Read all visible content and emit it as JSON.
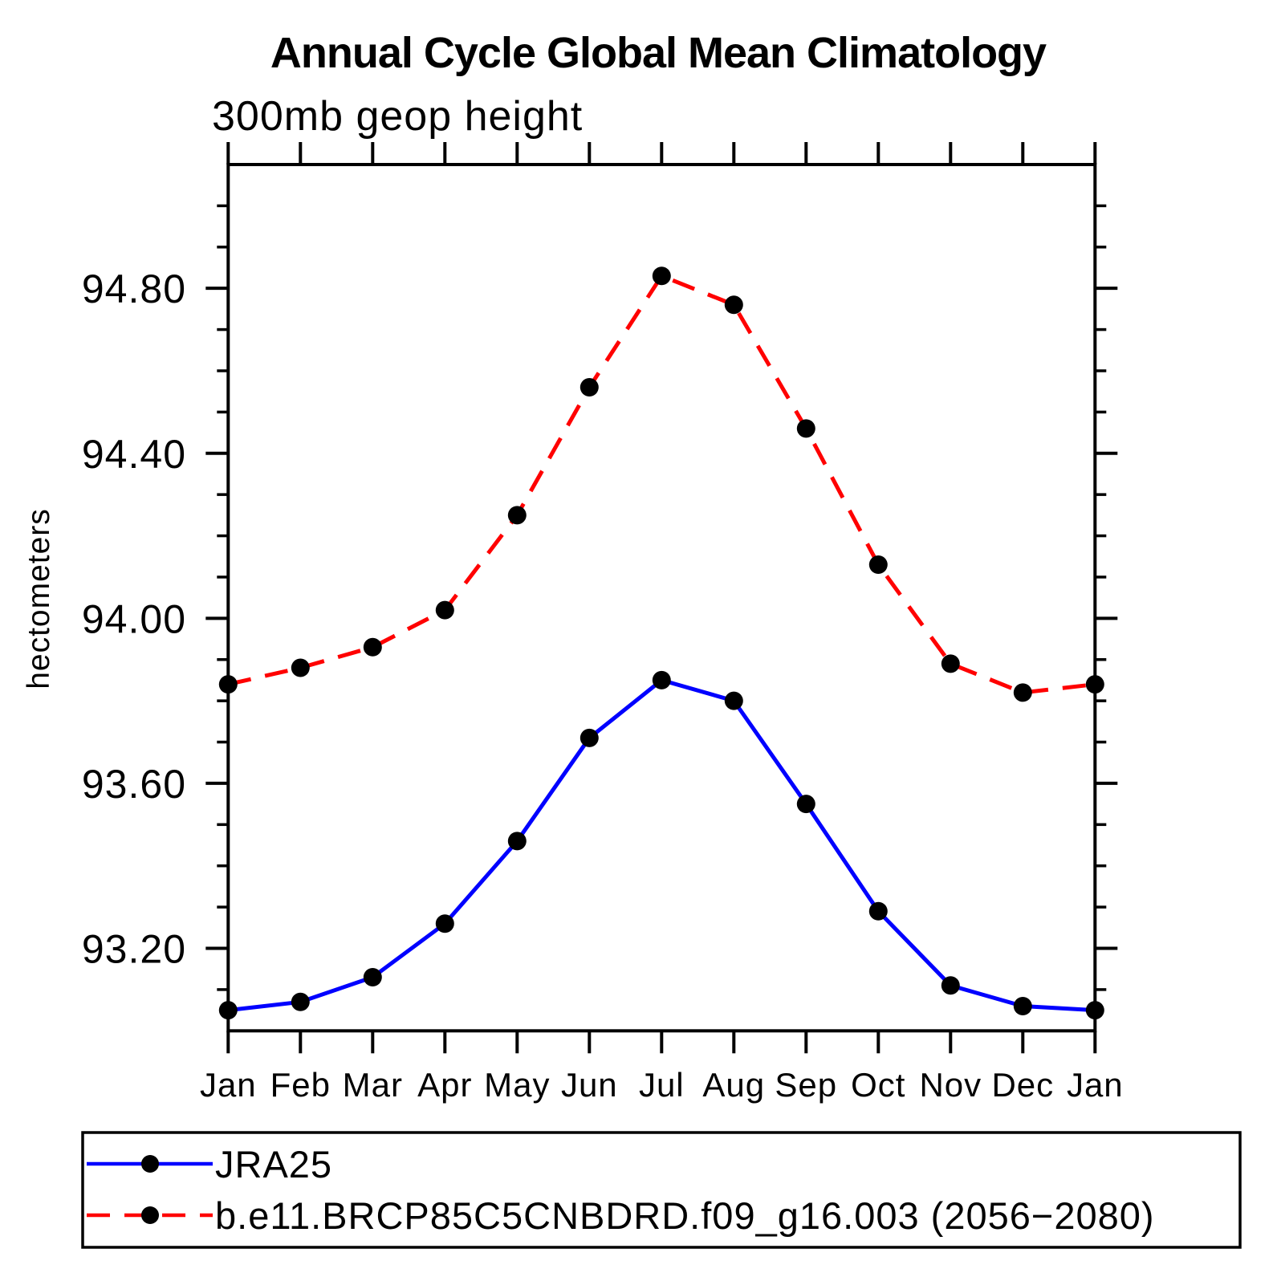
{
  "chart_data": {
    "type": "line",
    "title": "Annual Cycle Global Mean Climatology",
    "subtitle": "300mb geop height",
    "ylabel": "hectometers",
    "xlabel": "",
    "categories": [
      "Jan",
      "Feb",
      "Mar",
      "Apr",
      "May",
      "Jun",
      "Jul",
      "Aug",
      "Sep",
      "Oct",
      "Nov",
      "Dec",
      "Jan"
    ],
    "y_axis": {
      "min": 93.0,
      "max": 95.1,
      "major_tick_labels": [
        "93.20",
        "93.60",
        "94.00",
        "94.40",
        "94.80"
      ],
      "major_ticks": [
        93.2,
        93.6,
        94.0,
        94.4,
        94.8
      ],
      "minor_tick_step": 0.1
    },
    "grid": false,
    "legend_position": "bottom-left-box",
    "series": [
      {
        "name": "JRA25",
        "color": "#0000ff",
        "line_style": "solid",
        "marker": "filled-circle",
        "marker_color": "#000000",
        "values": [
          93.05,
          93.07,
          93.13,
          93.26,
          93.46,
          93.71,
          93.85,
          93.8,
          93.55,
          93.29,
          93.11,
          93.06,
          93.05
        ]
      },
      {
        "name": "b.e11.BRCP85C5CNBDRD.f09_g16.003 (2056−2080)",
        "color": "#ff0000",
        "line_style": "dashed",
        "marker": "filled-circle",
        "marker_color": "#000000",
        "values": [
          93.84,
          93.88,
          93.93,
          94.02,
          94.25,
          94.56,
          94.83,
          94.76,
          94.46,
          94.13,
          93.89,
          93.82,
          93.84
        ]
      }
    ],
    "colors": {
      "background": "#ffffff",
      "axis": "#000000",
      "text": "#000000"
    }
  }
}
